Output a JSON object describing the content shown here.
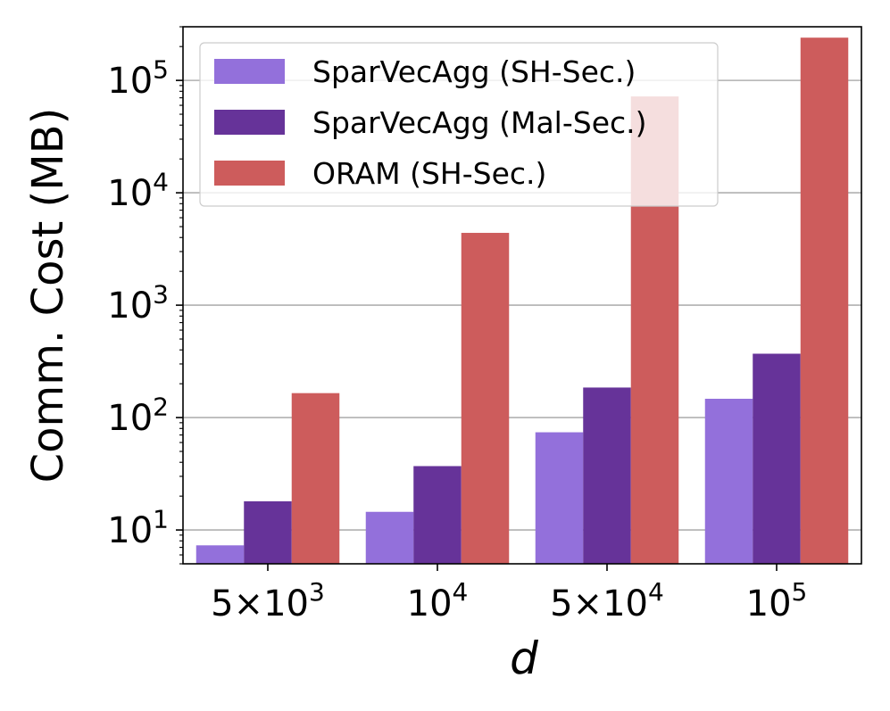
{
  "chart_data": {
    "type": "bar",
    "title": "",
    "xlabel": "d",
    "ylabel": "Comm. Cost (MB)",
    "y_scale": "log",
    "ylim": [
      5,
      300000
    ],
    "grid": "horizontal major",
    "legend_position": "top-left",
    "categories": [
      {
        "base": "5×10",
        "exp": "3"
      },
      {
        "base": "10",
        "exp": "4"
      },
      {
        "base": "5×10",
        "exp": "4"
      },
      {
        "base": "10",
        "exp": "5"
      }
    ],
    "y_ticks": [
      {
        "value": 10,
        "base": "10",
        "exp": "1"
      },
      {
        "value": 100,
        "base": "10",
        "exp": "2"
      },
      {
        "value": 1000,
        "base": "10",
        "exp": "3"
      },
      {
        "value": 10000,
        "base": "10",
        "exp": "4"
      },
      {
        "value": 100000,
        "base": "10",
        "exp": "5"
      }
    ],
    "series": [
      {
        "name": "SparVecAgg (SH-Sec.)",
        "color": "#9370db",
        "values": [
          7.3,
          14.5,
          74,
          147
        ]
      },
      {
        "name": "SparVecAgg (Mal-Sec.)",
        "color": "#663399",
        "values": [
          18,
          37,
          185,
          370
        ]
      },
      {
        "name": "ORAM (SH-Sec.)",
        "color": "#cd5c5c",
        "values": [
          165,
          4400,
          72000,
          240000
        ]
      }
    ]
  }
}
